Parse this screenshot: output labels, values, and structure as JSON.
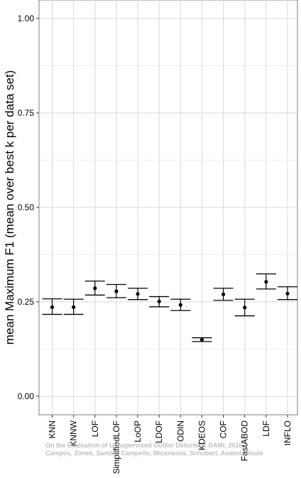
{
  "chart_data": {
    "type": "errorbar",
    "ylabel": "mean Maximum F1 (mean over best k per data set)",
    "xlabel": "",
    "ylim": [
      0.0,
      1.05
    ],
    "yticks": [
      "0.00",
      "0.25",
      "0.50",
      "0.75",
      "1.00"
    ],
    "ytick_values": [
      0.0,
      0.25,
      0.5,
      0.75,
      1.0
    ],
    "grid": true,
    "categories": [
      "KNN",
      "KNNW",
      "LOF",
      "SimplifiedLOF",
      "LoOP",
      "LDOF",
      "ODIN",
      "KDEOS",
      "COF",
      "FastABOD",
      "LDF",
      "INFLO"
    ],
    "series": [
      {
        "values": [
          0.236,
          0.236,
          0.286,
          0.278,
          0.271,
          0.251,
          0.242,
          0.15,
          0.27,
          0.235,
          0.303,
          0.272
        ],
        "lower": [
          0.217,
          0.217,
          0.268,
          0.261,
          0.256,
          0.237,
          0.227,
          0.145,
          0.254,
          0.213,
          0.284,
          0.256
        ],
        "upper": [
          0.258,
          0.257,
          0.305,
          0.296,
          0.286,
          0.264,
          0.257,
          0.155,
          0.286,
          0.257,
          0.324,
          0.29
        ]
      }
    ]
  },
  "watermark": {
    "line1": "On the Evaluation of Unsupervised Outlier Detection, DAMI, 2016",
    "line2": "Campos, Zimek, Sander, Campello, Micenková, Schubert, Assent, Houle"
  }
}
